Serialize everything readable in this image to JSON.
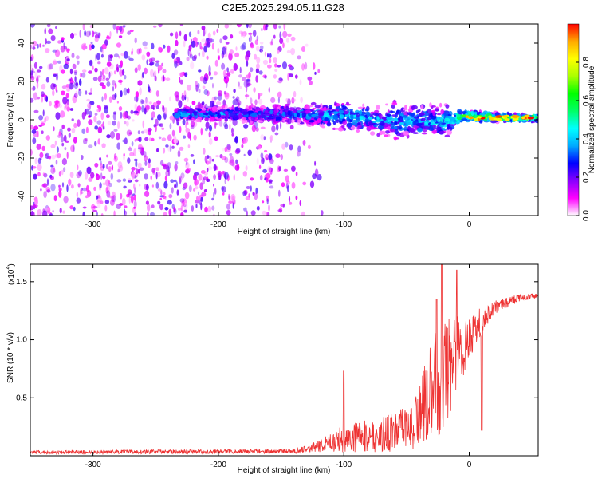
{
  "title": "C2E5.2025.294.05.11.G28",
  "chart_data": [
    {
      "type": "heatmap",
      "xlabel": "Height of straight line (km)",
      "ylabel": "Frequency (Hz)",
      "xlim": [
        -350,
        55
      ],
      "ylim": [
        -50,
        50
      ],
      "x_ticks": [
        -300,
        -200,
        -100,
        0
      ],
      "x_tick_labels": [
        "-300",
        "-200",
        "-100",
        "0"
      ],
      "y_ticks": [
        -40,
        -20,
        0,
        20,
        40
      ],
      "y_tick_labels": [
        "-40",
        "-20",
        "0",
        "20",
        "40"
      ],
      "colorbar": {
        "label": "Normalized spectral amplitude",
        "range": [
          0,
          1
        ],
        "ticks": [
          0.0,
          0.2,
          0.4,
          0.6,
          0.8
        ],
        "tick_labels": [
          "0.0",
          "0.2",
          "0.4",
          "0.6",
          "0.8"
        ],
        "colors": [
          "#ffffff",
          "#ff00ff",
          "#8800ff",
          "#0000ff",
          "#00aaff",
          "#00ffff",
          "#00ff66",
          "#00ff00",
          "#aaff00",
          "#ffff00",
          "#ffaa00",
          "#ff0000"
        ]
      },
      "noise_region_x": [
        -350,
        -135
      ],
      "signal_band": [
        {
          "x": -235,
          "f_center": 3,
          "f_half_width": 3,
          "amp": 0.3
        },
        {
          "x": -150,
          "f_center": 3,
          "f_half_width": 4,
          "amp": 0.3
        },
        {
          "x": -100,
          "f_center": 2,
          "f_half_width": 7,
          "amp": 0.35
        },
        {
          "x": -50,
          "f_center": -1,
          "f_half_width": 9,
          "amp": 0.35
        },
        {
          "x": -20,
          "f_center": -1,
          "f_half_width": 8,
          "amp": 0.4
        },
        {
          "x": -5,
          "f_center": 2,
          "f_half_width": 3,
          "amp": 0.6
        },
        {
          "x": 30,
          "f_center": 1,
          "f_half_width": 2,
          "amp": 0.7
        },
        {
          "x": 55,
          "f_center": 1,
          "f_half_width": 2,
          "amp": 0.7
        }
      ]
    },
    {
      "type": "line",
      "xlabel": "Height of straight line (km)",
      "ylabel": "SNR (10 * v/v)",
      "y_multiplier": "(x10",
      "y_multiplier_exp": "4",
      "y_multiplier_close": ")",
      "xlim": [
        -350,
        55
      ],
      "ylim": [
        0,
        16500
      ],
      "x_ticks": [
        -300,
        -200,
        -100,
        0
      ],
      "x_tick_labels": [
        "-300",
        "-200",
        "-100",
        "0"
      ],
      "y_ticks": [
        5000,
        10000,
        15000
      ],
      "y_tick_labels": [
        "0.5",
        "1.0",
        "1.5"
      ],
      "color": "#ee3333",
      "envelope": [
        {
          "x": -350,
          "base": 300,
          "noise": 150
        },
        {
          "x": -140,
          "base": 400,
          "noise": 200
        },
        {
          "x": -120,
          "base": 800,
          "noise": 500
        },
        {
          "x": -100,
          "base": 1500,
          "noise": 1200
        },
        {
          "x": -70,
          "base": 1800,
          "noise": 1500
        },
        {
          "x": -45,
          "base": 2500,
          "noise": 2000
        },
        {
          "x": -35,
          "base": 4500,
          "noise": 3500
        },
        {
          "x": -25,
          "base": 6500,
          "noise": 5000
        },
        {
          "x": -15,
          "base": 8000,
          "noise": 4500
        },
        {
          "x": -5,
          "base": 9500,
          "noise": 3000
        },
        {
          "x": 5,
          "base": 11000,
          "noise": 1500
        },
        {
          "x": 20,
          "base": 12800,
          "noise": 600
        },
        {
          "x": 40,
          "base": 13600,
          "noise": 300
        },
        {
          "x": 55,
          "base": 13800,
          "noise": 200
        }
      ],
      "peaks": [
        {
          "x": -22,
          "y": 16500
        },
        {
          "x": -10,
          "y": 16000
        },
        {
          "x": -26,
          "y": 13500
        },
        {
          "x": -100,
          "y": 7300
        }
      ],
      "dip": {
        "x": 10,
        "y": 2200
      }
    }
  ]
}
